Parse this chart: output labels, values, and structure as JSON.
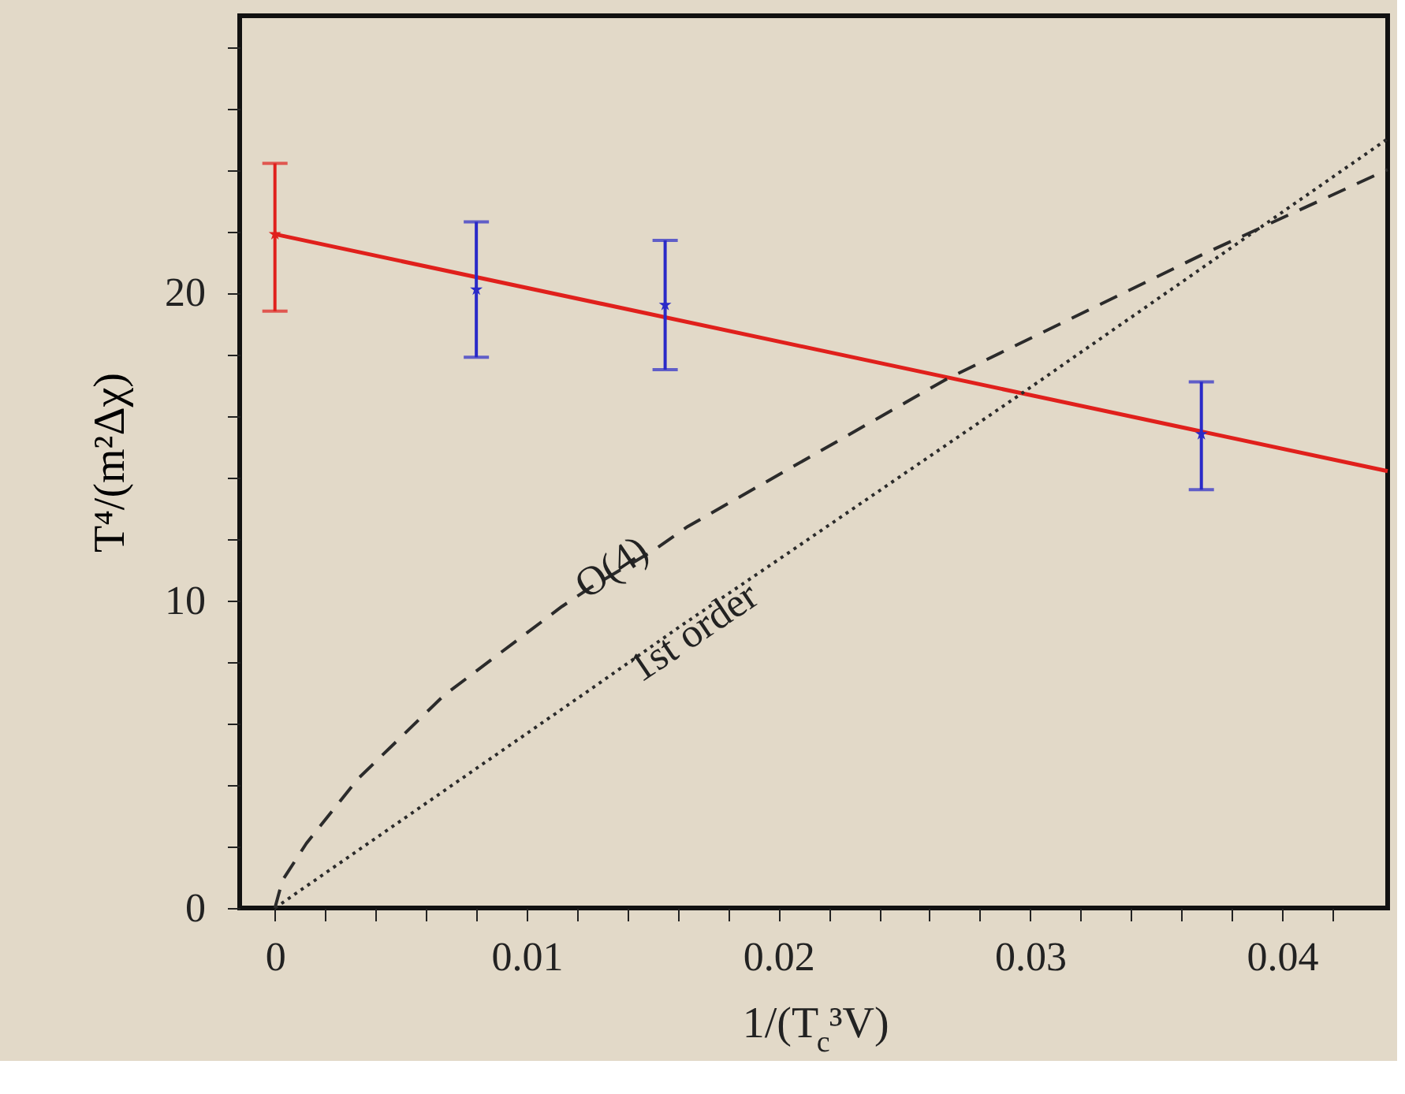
{
  "chart_data": {
    "type": "line",
    "xlabel": "1/(T$_{c}$³V)",
    "ylabel": "T⁴/(m²Δχ)",
    "xlim": [
      -0.0014,
      0.0442
    ],
    "ylim": [
      0,
      29
    ],
    "xticks": [
      0,
      {
        "value": 0.002,
        "label": null
      },
      {
        "value": 0.004,
        "label": null
      },
      {
        "value": 0.006,
        "label": null
      },
      {
        "value": 0.008,
        "label": null
      },
      0.01,
      {
        "value": 0.012,
        "label": null
      },
      {
        "value": 0.014,
        "label": null
      },
      {
        "value": 0.016,
        "label": null
      },
      {
        "value": 0.018,
        "label": null
      },
      0.02,
      {
        "value": 0.022,
        "label": null
      },
      {
        "value": 0.024,
        "label": null
      },
      {
        "value": 0.026,
        "label": null
      },
      {
        "value": 0.028,
        "label": null
      },
      0.03,
      {
        "value": 0.032,
        "label": null
      },
      {
        "value": 0.034,
        "label": null
      },
      {
        "value": 0.036,
        "label": null
      },
      {
        "value": 0.038,
        "label": null
      },
      0.04,
      {
        "value": 0.042,
        "label": null
      }
    ],
    "yticks": [
      0,
      {
        "value": 2,
        "label": null
      },
      {
        "value": 4,
        "label": null
      },
      {
        "value": 6,
        "label": null
      },
      {
        "value": 8,
        "label": null
      },
      10,
      {
        "value": 12,
        "label": null
      },
      {
        "value": 14,
        "label": null
      },
      {
        "value": 16,
        "label": null
      },
      {
        "value": 18,
        "label": null
      },
      20,
      {
        "value": 22,
        "label": null
      },
      {
        "value": 24,
        "label": null
      },
      {
        "value": 26,
        "label": null
      },
      {
        "value": 28,
        "label": null
      }
    ],
    "grid": false,
    "series": [
      {
        "color": "#e0201c",
        "line_style": "solid",
        "x": [
          0,
          0.0442
        ],
        "values": [
          21.9,
          14.2
        ]
      },
      {
        "type": "scatter",
        "color": "#e0201c",
        "marker": "star",
        "x": [
          0
        ],
        "values": [
          21.9
        ],
        "errors": [
          [
            19.4,
            24.2
          ]
        ]
      },
      {
        "type": "scatter",
        "color": "#2a2ac8",
        "marker": "star",
        "x": [
          0.008,
          0.0155,
          0.0368
        ],
        "values": [
          20.1,
          19.6,
          15.4
        ],
        "errors": [
          [
            17.9,
            22.3
          ],
          [
            17.5,
            21.7
          ],
          [
            13.6,
            17.1
          ]
        ]
      },
      {
        "color": "#2b2b2b",
        "line_style": "dashed",
        "x": [
          0,
          0.0003,
          0.00125,
          0.0033,
          0.0067,
          0.0114,
          0.0125,
          0.015,
          0.0164,
          0.0267,
          0.037,
          0.0442
        ],
        "values": [
          0,
          0.9,
          2.1,
          4.2,
          6.9,
          9.8,
          10.4,
          11.6,
          12.4,
          17.2,
          21.3,
          24.0
        ]
      },
      {
        "color": "#2b2b2b",
        "line_style": "dotted",
        "x": [
          0,
          0.0127,
          0.016,
          0.0205,
          0.0298,
          0.0442
        ],
        "values": [
          0,
          7.2,
          9.1,
          11.6,
          16.8,
          25.0
        ]
      }
    ],
    "annotations": [
      "O(4)",
      "1st order"
    ]
  }
}
